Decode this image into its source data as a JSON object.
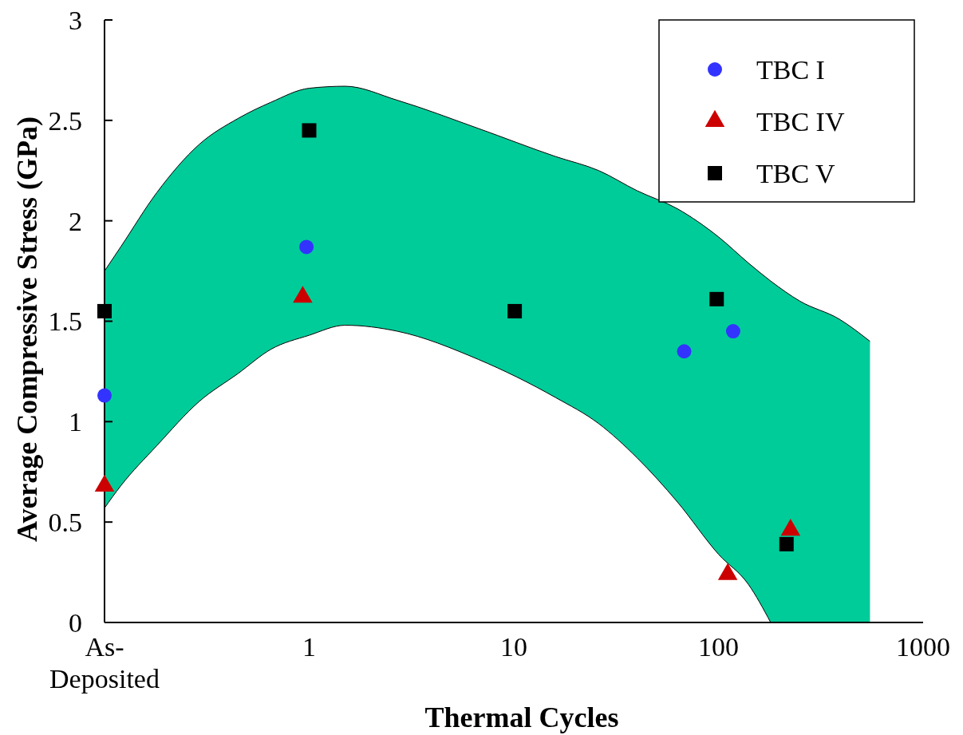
{
  "chart_data": {
    "type": "scatter",
    "xlabel": "Thermal Cycles",
    "ylabel": "Average Compressive Stress (GPa)",
    "log": "x",
    "xlim": [
      0.1,
      1000
    ],
    "ylim": [
      0,
      3
    ],
    "xticks": [
      {
        "value": 0.1,
        "label": "As-Deposited"
      },
      1,
      10,
      100,
      1000
    ],
    "yticks": [
      0,
      0.5,
      1,
      1.5,
      2,
      2.5,
      3
    ],
    "grid": false,
    "legend": "top right",
    "series": [
      {
        "type": "area",
        "color": "#00cc99",
        "x": [
          0.1,
          0.12,
          0.18,
          0.29,
          0.45,
          0.65,
          1,
          1.5,
          2.7,
          6.7,
          16,
          26,
          40,
          63,
          100,
          140,
          180,
          250,
          390,
          550
        ],
        "values": [
          1.75,
          1.87,
          2.14,
          2.38,
          2.51,
          2.59,
          2.66,
          2.67,
          2.6,
          2.46,
          2.32,
          2.25,
          2.15,
          2.06,
          1.92,
          1.79,
          1.7,
          1.6,
          1.51,
          1.4
        ]
      },
      {
        "type": "area",
        "color": "#ffffff",
        "x": [
          0.1,
          0.12,
          0.18,
          0.29,
          0.45,
          0.65,
          1,
          1.5,
          2.7,
          6.7,
          16,
          26,
          40,
          63,
          100,
          140,
          180
        ],
        "values": [
          0.57,
          0.68,
          0.88,
          1.1,
          1.24,
          1.36,
          1.43,
          1.48,
          1.45,
          1.31,
          1.12,
          0.99,
          0.82,
          0.6,
          0.34,
          0.19,
          0
        ]
      },
      {
        "name": "TBC I",
        "color": "#3333ff",
        "marker": "circle",
        "x": [
          0.1,
          0.97,
          68,
          118
        ],
        "values": [
          1.13,
          1.87,
          1.35,
          1.45
        ]
      },
      {
        "name": "TBC IV",
        "color": "#cc0000",
        "marker": "triangle",
        "x": [
          0.1,
          0.93,
          111,
          225
        ],
        "values": [
          0.68,
          1.62,
          0.24,
          0.46
        ]
      },
      {
        "name": "TBC V",
        "color": "#000000",
        "marker": "square",
        "x": [
          0.1,
          1,
          10.1,
          98,
          215
        ],
        "values": [
          1.55,
          2.45,
          1.55,
          1.61,
          0.39
        ]
      }
    ]
  }
}
